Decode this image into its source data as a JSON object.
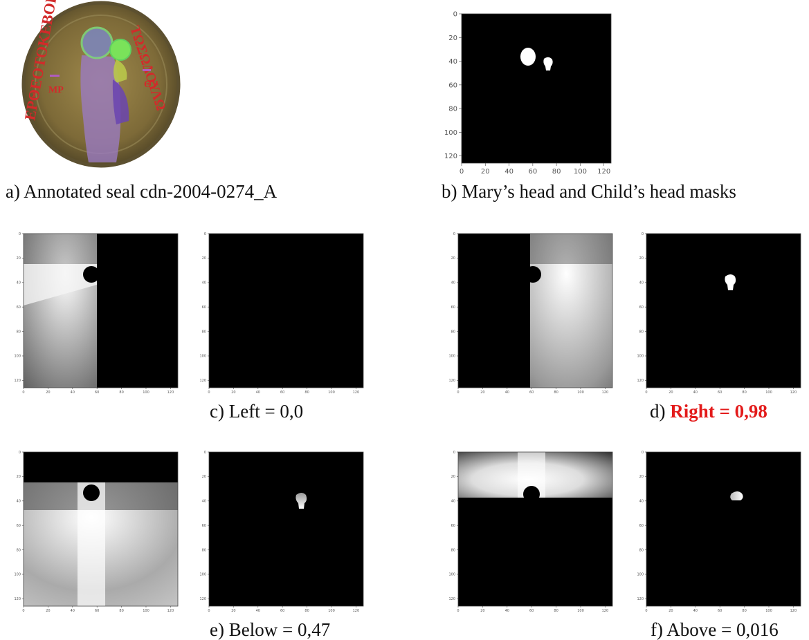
{
  "figure": {
    "a": {
      "label": "a) Annotated seal cdn-2004-0274_A",
      "inscription_left": "ΕΡΘΕΟΤΟΚΕΒΟΗΘΕΙ",
      "inscription_right": "ΤΩΣΩΔΟΥΛΩ",
      "mary_monogram": "ΜΡ",
      "child_monogram": "ΘΥ"
    },
    "b": {
      "label": "b) Mary’s head and Child’s head masks"
    },
    "c": {
      "label_prefix": "c) ",
      "label_value": "Left = 0,0"
    },
    "d": {
      "label_prefix": "d) ",
      "label_value": "Right = 0,98"
    },
    "e": {
      "label_prefix": "e) ",
      "label_value": "Below = 0,47"
    },
    "f": {
      "label_prefix": "f) ",
      "label_value": "Above = 0,016"
    }
  },
  "axes": {
    "ticks": [
      0,
      20,
      40,
      60,
      80,
      100,
      120
    ],
    "limit": 126
  },
  "colors": {
    "highlight": "#e31b1b"
  }
}
